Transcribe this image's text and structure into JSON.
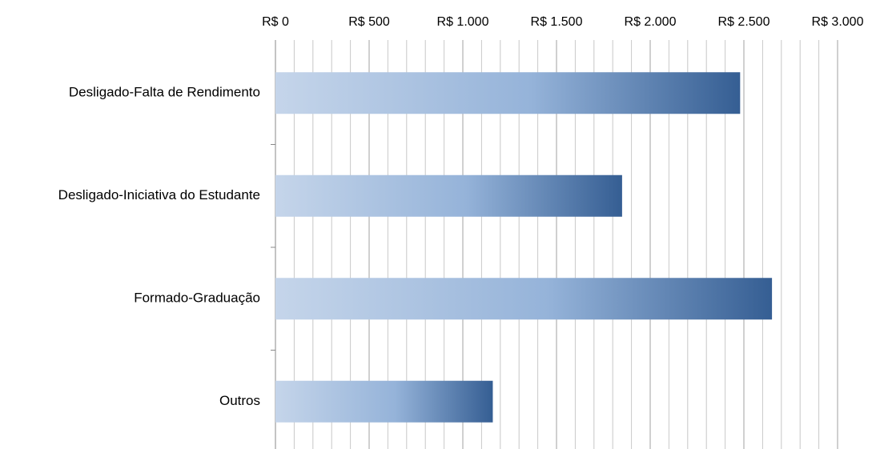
{
  "chart_data": {
    "type": "barh",
    "categories": [
      "Desligado-Falta de Rendimento",
      "Desligado-Iniciativa do Estudante",
      "Formado-Graduação",
      "Outros"
    ],
    "values": [
      2480,
      1850,
      2650,
      1160
    ],
    "gradient": [
      "#c5d5ea",
      "#95b3d9",
      "#355e93"
    ],
    "xlim": [
      0,
      3000
    ],
    "xticks": [
      {
        "value": 0,
        "label": "R$ 0"
      },
      {
        "value": 500,
        "label": "R$ 500"
      },
      {
        "value": 1000,
        "label": "R$ 1.000"
      },
      {
        "value": 1500,
        "label": "R$ 1.500"
      },
      {
        "value": 2000,
        "label": "R$ 2.000"
      },
      {
        "value": 2500,
        "label": "R$ 2.500"
      },
      {
        "value": 3000,
        "label": "R$ 3.000"
      }
    ],
    "xminorticks": [
      100,
      200,
      300,
      400,
      600,
      700,
      800,
      900,
      1100,
      1200,
      1300,
      1400,
      1600,
      1700,
      1800,
      1900,
      2100,
      2200,
      2300,
      2400,
      2600,
      2700,
      2800,
      2900
    ],
    "grid": true
  }
}
